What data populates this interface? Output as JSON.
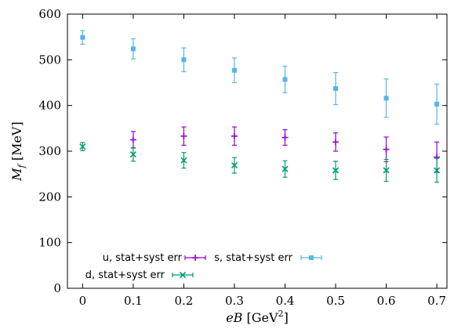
{
  "chart_data": {
    "type": "scatter",
    "x_label_main": "eB",
    "x_label_unit_prefix": "[GeV",
    "x_label_unit_exp": "2",
    "x_label_unit_suffix": "]",
    "y_label_main": "M",
    "y_label_sub": "f",
    "y_label_unit": "[MeV]",
    "xlim": [
      -0.03,
      0.72
    ],
    "ylim": [
      0,
      600
    ],
    "x_ticks": [
      0,
      0.1,
      0.2,
      0.3,
      0.4,
      0.5,
      0.6,
      0.7
    ],
    "x_tick_labels": [
      "0",
      "0.1",
      "0.2",
      "0.3",
      "0.4",
      "0.5",
      "0.6",
      "0.7"
    ],
    "y_ticks": [
      0,
      100,
      200,
      300,
      400,
      500,
      600
    ],
    "y_tick_labels": [
      "0",
      "100",
      "200",
      "300",
      "400",
      "500",
      "600"
    ],
    "legend_position": "bottom-left",
    "series": [
      {
        "name": "u, stat+syst err",
        "marker": "plus",
        "color": "#9400d3",
        "points": [
          {
            "x": 0.1,
            "y": 325,
            "err": 18
          },
          {
            "x": 0.2,
            "y": 333,
            "err": 20
          },
          {
            "x": 0.3,
            "y": 333,
            "err": 20
          },
          {
            "x": 0.4,
            "y": 330,
            "err": 17
          },
          {
            "x": 0.5,
            "y": 320,
            "err": 20
          },
          {
            "x": 0.6,
            "y": 304,
            "err": 27
          },
          {
            "x": 0.7,
            "y": 287,
            "err": 33
          }
        ]
      },
      {
        "name": "d, stat+syst err",
        "marker": "cross",
        "color": "#009e73",
        "points": [
          {
            "x": 0.0,
            "y": 310,
            "err": 9
          },
          {
            "x": 0.1,
            "y": 293,
            "err": 15
          },
          {
            "x": 0.2,
            "y": 280,
            "err": 17
          },
          {
            "x": 0.3,
            "y": 269,
            "err": 17
          },
          {
            "x": 0.4,
            "y": 261,
            "err": 18
          },
          {
            "x": 0.5,
            "y": 258,
            "err": 20
          },
          {
            "x": 0.6,
            "y": 258,
            "err": 24
          },
          {
            "x": 0.7,
            "y": 258,
            "err": 26
          }
        ]
      },
      {
        "name": "s, stat+syst err",
        "marker": "square",
        "color": "#56b4e9",
        "points": [
          {
            "x": 0.0,
            "y": 549,
            "err": 15
          },
          {
            "x": 0.1,
            "y": 524,
            "err": 22
          },
          {
            "x": 0.2,
            "y": 500,
            "err": 26
          },
          {
            "x": 0.3,
            "y": 477,
            "err": 27
          },
          {
            "x": 0.4,
            "y": 457,
            "err": 29
          },
          {
            "x": 0.5,
            "y": 437,
            "err": 35
          },
          {
            "x": 0.6,
            "y": 416,
            "err": 42
          },
          {
            "x": 0.7,
            "y": 403,
            "err": 44
          }
        ]
      }
    ]
  }
}
